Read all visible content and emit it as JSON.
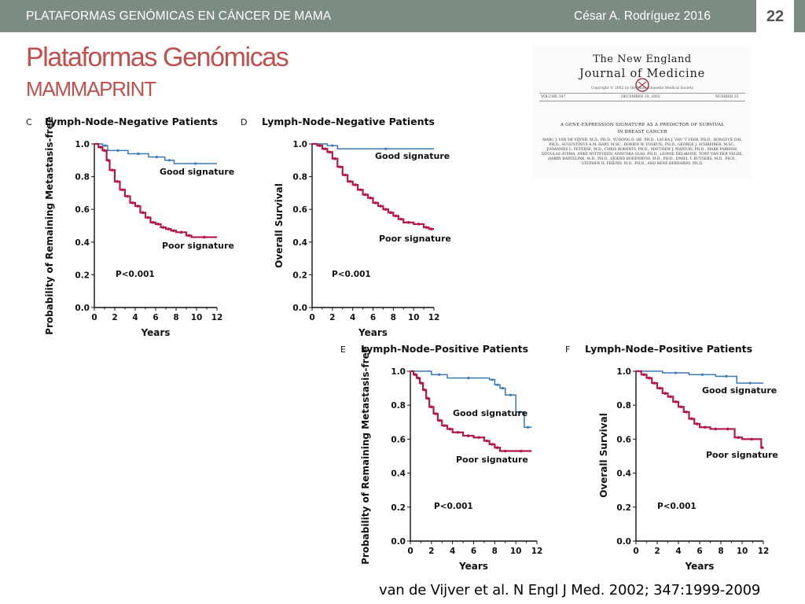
{
  "header": {
    "course_title": "PLATAFORMAS GENÓMICAS EN CÁNCER DE MAMA",
    "author_year": "César A. Rodríguez  2016",
    "page_number": "22"
  },
  "slide": {
    "title": "Plataformas Genómicas",
    "subtitle": "MAMMAPRINT"
  },
  "article": {
    "journal_line1": "The New England",
    "journal_line2": "Journal of Medicine",
    "copyright": "Copyright © 2002 by the Massachusetts Medical Society",
    "volume": "VOLUME 347",
    "date": "DECEMBER 19, 2002",
    "number": "NUMBER 25",
    "title_line1": "A GENE-EXPRESSION SIGNATURE AS A PREDICTOR OF SURVIVAL",
    "title_line2": "IN BREAST CANCER",
    "authors": "MARC J. VAN DE VIJVER, M.D., PH.D., YUDONG D. HE, PH.D., LAURA J. VAN 'T VEER, PH.D., HONGYUE DAI, PH.D., AUGUSTINUS A.M. HART, M.SC., DORIEN W. VOSKUIL, PH.D., GEORGE J. SCHREIBER, M.SC., JOHANNES L. PETERSE, M.D., CHRIS ROBERTS, PH.D., MATTHEW J. MARTON, PH.D., MARK PARRISH, DOUGLAS ATSMA, ANKE WITTEVEEN, ANNUSKA GLAS, PH.D., LEONIE DELAHAYE, TONY VAN DER VELDE, HARRY BARTELINK, M.D., PH.D., SJOERD RODENHUIS, M.D., PH.D., EMIEL T. RUTGERS, M.D., PH.D., STEPHEN H. FRIEND, M.D., PH.D., AND RENÉ BERNARDS, PH.D."
  },
  "citation": "van de Vijver et al. N Engl J Med. 2002; 347:1999-2009",
  "colors": {
    "good": "#3a78b5",
    "poor": "#b5174a",
    "title": "#c0504d",
    "header_bg": "#7d8c82"
  },
  "chart_data": [
    {
      "panel": "C",
      "type": "line",
      "title": "Lymph-Node–Negative Patients",
      "xlabel": "Years",
      "ylabel": "Probability of Remaining Metastasis-free",
      "xlim": [
        0,
        12
      ],
      "ylim": [
        0.0,
        1.0
      ],
      "xticks": [
        "0",
        "2",
        "4",
        "6",
        "8",
        "10",
        "12"
      ],
      "yticks": [
        "0.0",
        "0.2",
        "0.4",
        "0.6",
        "0.8",
        "1.0"
      ],
      "annotation": "P<0.001",
      "series": [
        {
          "name": "Good signature",
          "x": [
            0,
            0.8,
            1.3,
            3.3,
            5.3,
            6.9,
            7.8,
            12
          ],
          "y": [
            1.0,
            0.99,
            0.96,
            0.94,
            0.92,
            0.9,
            0.88,
            0.88
          ]
        },
        {
          "name": "Poor signature",
          "x": [
            0,
            0.4,
            0.8,
            1.2,
            1.5,
            2.0,
            2.5,
            3.0,
            3.5,
            4.0,
            4.5,
            5.0,
            5.5,
            6.0,
            6.5,
            7.0,
            7.5,
            8.0,
            9.0,
            9.5,
            12
          ],
          "y": [
            1.0,
            0.98,
            0.96,
            0.9,
            0.84,
            0.77,
            0.72,
            0.68,
            0.64,
            0.62,
            0.58,
            0.55,
            0.52,
            0.51,
            0.49,
            0.48,
            0.47,
            0.46,
            0.44,
            0.43,
            0.43
          ]
        }
      ]
    },
    {
      "panel": "D",
      "type": "line",
      "title": "Lymph-Node–Negative Patients",
      "xlabel": "Years",
      "ylabel": "Overall Survival",
      "xlim": [
        0,
        12
      ],
      "ylim": [
        0.0,
        1.0
      ],
      "xticks": [
        "0",
        "2",
        "4",
        "6",
        "8",
        "10",
        "12"
      ],
      "yticks": [
        "0.0",
        "0.2",
        "0.4",
        "0.6",
        "0.8",
        "1.0"
      ],
      "annotation": "P<0.001",
      "series": [
        {
          "name": "Good signature",
          "x": [
            0,
            1.5,
            2.5,
            12
          ],
          "y": [
            1.0,
            0.99,
            0.97,
            0.97
          ]
        },
        {
          "name": "Poor signature",
          "x": [
            0,
            0.5,
            1.0,
            1.5,
            2.0,
            2.5,
            3.0,
            3.5,
            4.0,
            4.5,
            5.0,
            5.5,
            6.0,
            6.5,
            7.0,
            7.5,
            8.0,
            8.5,
            9.0,
            10.0,
            11.0,
            11.5,
            12
          ],
          "y": [
            1.0,
            0.99,
            0.97,
            0.95,
            0.91,
            0.86,
            0.81,
            0.77,
            0.75,
            0.72,
            0.69,
            0.67,
            0.64,
            0.62,
            0.6,
            0.58,
            0.56,
            0.54,
            0.52,
            0.51,
            0.49,
            0.48,
            0.48
          ]
        }
      ]
    },
    {
      "panel": "E",
      "type": "line",
      "title": "Lymph-Node–Positive Patients",
      "xlabel": "Years",
      "ylabel": "Probability of Remaining Metastasis-free",
      "xlim": [
        0,
        12
      ],
      "ylim": [
        0.0,
        1.0
      ],
      "xticks": [
        "0",
        "2",
        "4",
        "6",
        "8",
        "10",
        "12"
      ],
      "yticks": [
        "0.0",
        "0.2",
        "0.4",
        "0.6",
        "0.8",
        "1.0"
      ],
      "annotation": "P<0.001",
      "series": [
        {
          "name": "Good signature",
          "x": [
            0,
            2.0,
            3.5,
            7.5,
            8.0,
            8.5,
            9.0,
            10.0,
            10.8,
            11.5
          ],
          "y": [
            1.0,
            0.98,
            0.96,
            0.95,
            0.92,
            0.9,
            0.86,
            0.76,
            0.67,
            0.67
          ]
        },
        {
          "name": "Poor signature",
          "x": [
            0,
            0.3,
            0.6,
            0.9,
            1.2,
            1.5,
            1.8,
            2.2,
            2.6,
            3.0,
            3.5,
            4.0,
            5.0,
            6.0,
            7.0,
            7.5,
            8.0,
            8.5,
            9.5,
            11.5
          ],
          "y": [
            1.0,
            0.98,
            0.96,
            0.93,
            0.89,
            0.84,
            0.79,
            0.75,
            0.71,
            0.68,
            0.66,
            0.64,
            0.62,
            0.61,
            0.59,
            0.57,
            0.55,
            0.53,
            0.53,
            0.53
          ]
        }
      ]
    },
    {
      "panel": "F",
      "type": "line",
      "title": "Lymph-Node–Positive Patients",
      "xlabel": "Years",
      "ylabel": "Overall Survival",
      "xlim": [
        0,
        12
      ],
      "ylim": [
        0.0,
        1.0
      ],
      "xticks": [
        "0",
        "2",
        "4",
        "6",
        "8",
        "10",
        "12"
      ],
      "yticks": [
        "0.0",
        "0.2",
        "0.4",
        "0.6",
        "0.8",
        "1.0"
      ],
      "annotation": "P<0.001",
      "series": [
        {
          "name": "Good signature",
          "x": [
            0,
            2.5,
            5.0,
            7.5,
            9.5,
            12
          ],
          "y": [
            1.0,
            0.99,
            0.98,
            0.97,
            0.93,
            0.93
          ]
        },
        {
          "name": "Poor signature",
          "x": [
            0,
            0.5,
            1.0,
            1.5,
            2.0,
            2.5,
            3.0,
            3.5,
            4.0,
            4.5,
            5.0,
            5.5,
            6.0,
            7.0,
            8.0,
            9.3,
            10.0,
            11.8,
            12
          ],
          "y": [
            1.0,
            0.98,
            0.96,
            0.93,
            0.9,
            0.87,
            0.85,
            0.82,
            0.79,
            0.76,
            0.72,
            0.69,
            0.67,
            0.66,
            0.66,
            0.61,
            0.6,
            0.55,
            0.55
          ]
        }
      ]
    }
  ]
}
